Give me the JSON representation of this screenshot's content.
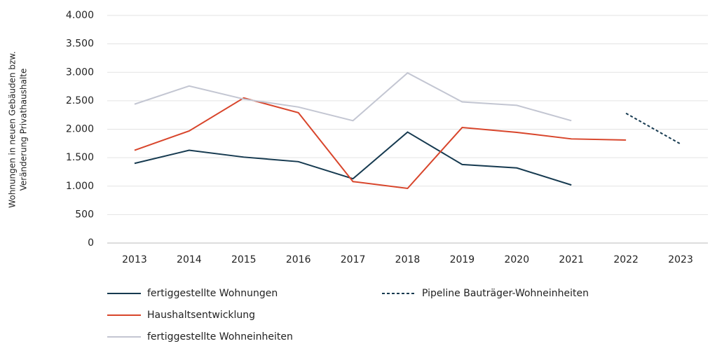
{
  "chart_data": {
    "type": "line",
    "ylabel": [
      "Wohnungen in neuen Gebäuden bzw.",
      "Veränderung Privathaushalte"
    ],
    "categories": [
      "2013",
      "2014",
      "2015",
      "2016",
      "2017",
      "2018",
      "2019",
      "2020",
      "2021",
      "2022",
      "2023"
    ],
    "series": [
      {
        "name": "fertiggestellte Wohnungen",
        "color": "#163a50",
        "dashed": false,
        "values": [
          1400,
          1630,
          1510,
          1430,
          1130,
          1950,
          1380,
          1320,
          1020,
          null,
          null
        ]
      },
      {
        "name": "Haushaltsentwicklung",
        "color": "#d8452b",
        "dashed": false,
        "values": [
          1630,
          1970,
          2550,
          2290,
          1080,
          960,
          2030,
          1945,
          1830,
          1810,
          null
        ]
      },
      {
        "name": "fertiggestellte Wohneinheiten",
        "color": "#c3c6d2",
        "dashed": false,
        "values": [
          2440,
          2760,
          2530,
          2390,
          2150,
          2990,
          2480,
          2420,
          2150,
          null,
          null
        ]
      },
      {
        "name": "Pipeline Bauträger-Wohneinheiten",
        "color": "#163a50",
        "dashed": true,
        "values": [
          null,
          null,
          null,
          null,
          null,
          null,
          null,
          null,
          null,
          2280,
          1740
        ]
      }
    ],
    "ylim": [
      0,
      4000
    ],
    "yticks": [
      0,
      500,
      {
        "value": 1000,
        "label": "1.000"
      },
      {
        "value": 1500,
        "label": "1.500"
      },
      {
        "value": 2000,
        "label": "2.000"
      },
      {
        "value": 2500,
        "label": "2.500"
      },
      {
        "value": 3000,
        "label": "3.000"
      },
      {
        "value": 3500,
        "label": "3.500"
      },
      {
        "value": 4000,
        "label": "4.000"
      }
    ],
    "grid": true
  }
}
